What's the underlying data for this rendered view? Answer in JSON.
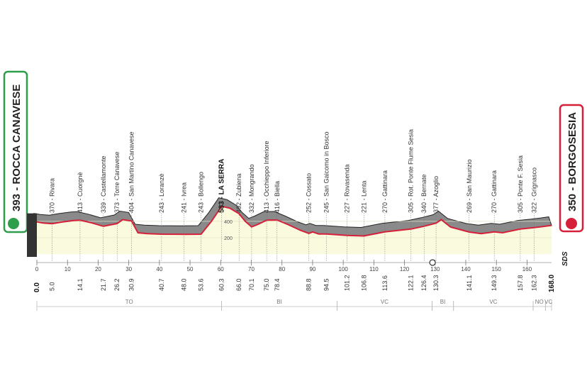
{
  "chart_data": {
    "type": "area",
    "start": "393 - ROCCA CANAVESE",
    "finish": "350 - BORGOSESIA",
    "logo": "SDS",
    "xlim": [
      0,
      168
    ],
    "ylim": [
      0,
      650
    ],
    "xticks": [
      0,
      10,
      20,
      30,
      40,
      50,
      60,
      70,
      80,
      90,
      100,
      110,
      120,
      130,
      140,
      150,
      160
    ],
    "yticks": [
      200,
      400
    ],
    "profile_color": "#d6203a",
    "x": [
      0,
      2,
      5,
      8,
      12,
      14.1,
      18,
      21.7,
      26.2,
      28,
      30.9,
      33,
      36,
      40.7,
      48,
      53.6,
      57,
      60.3,
      63,
      66,
      68,
      70.1,
      72,
      75,
      78.4,
      82,
      86,
      88.8,
      90,
      92,
      94.5,
      101.2,
      106.8,
      113.6,
      122.1,
      126.4,
      130.3,
      132,
      135,
      141.1,
      145,
      149.3,
      152,
      157.8,
      162.3,
      166,
      168
    ],
    "values": [
      393,
      380,
      370,
      390,
      410,
      413,
      380,
      339,
      373,
      420,
      404,
      260,
      250,
      243,
      241,
      243,
      400,
      583,
      560,
      492,
      400,
      332,
      360,
      413,
      416,
      360,
      290,
      252,
      270,
      245,
      245,
      227,
      221,
      270,
      305,
      340,
      377,
      420,
      330,
      269,
      250,
      270,
      260,
      305,
      322,
      340,
      350
    ],
    "waypoints": [
      {
        "label": "370 - Rivara",
        "km": {
          "value": 5,
          "label": "5.0"
        }
      },
      {
        "label": "413 - Cuorgnè",
        "km": 14.1
      },
      {
        "label": "339 - Castellamonte",
        "km": 21.7
      },
      {
        "label": "373 - Torre Canavese",
        "km": 26.2
      },
      {
        "label": "404 - San Martino Canavese",
        "km": 30.9
      },
      {
        "label": "243 - Loranzè",
        "km": 40.7
      },
      {
        "label": "241 - Ivrea",
        "km": {
          "value": 48,
          "label": "48.0"
        }
      },
      {
        "label": "243 - Bollengo",
        "km": 53.6
      },
      {
        "label": "583 - LA SERRA",
        "km": 60.3
      },
      {
        "label": "492 - Zubiena",
        "km": {
          "value": 66,
          "label": "66.0"
        }
      },
      {
        "label": "332 - Mongrando",
        "km": 70.1
      },
      {
        "label": "413 - Occhieppo Inferiore",
        "km": {
          "value": 75,
          "label": "75.0"
        }
      },
      {
        "label": "416 - Biella",
        "km": 78.4
      },
      {
        "label": "252 - Cossato",
        "km": 88.8
      },
      {
        "label": "245 - San Gaicomo in Bosco",
        "km": 94.5
      },
      {
        "label": "227 - Rovasenda",
        "km": 101.2
      },
      {
        "label": "221 - Lenta",
        "km": 106.8
      },
      {
        "label": "270 - Gattinara",
        "km": 113.6
      },
      {
        "label": "305 - Rot. Ponte Flume Sesia",
        "km": 122.1
      },
      {
        "label": "340 - Bernate",
        "km": 126.4
      },
      {
        "label": "377 - Azoglio",
        "km": 130.3
      },
      {
        "label": "269 - San Maurizio",
        "km": 141.1
      },
      {
        "label": "270 - Gattinara",
        "km": 149.3
      },
      {
        "label": "305 - Ponte F. Sesia",
        "km": 157.8
      },
      {
        "label": "322 - Grignasco",
        "km": 162.3
      }
    ],
    "start_km": {
      "value": 0,
      "label": "0.0"
    },
    "finish_km": {
      "value": 168,
      "label": "168.0"
    },
    "regions": [
      {
        "label": "TO",
        "from": 0,
        "to": 60.3
      },
      {
        "label": "BI",
        "from": 60.3,
        "to": 98
      },
      {
        "label": "VC",
        "from": 98,
        "to": 129
      },
      {
        "label": "BI",
        "from": 129,
        "to": 136
      },
      {
        "label": "VC",
        "from": 136,
        "to": 162
      },
      {
        "label": "NO",
        "from": 162,
        "to": 166
      },
      {
        "label": "VC",
        "from": 166,
        "to": 168
      }
    ]
  }
}
